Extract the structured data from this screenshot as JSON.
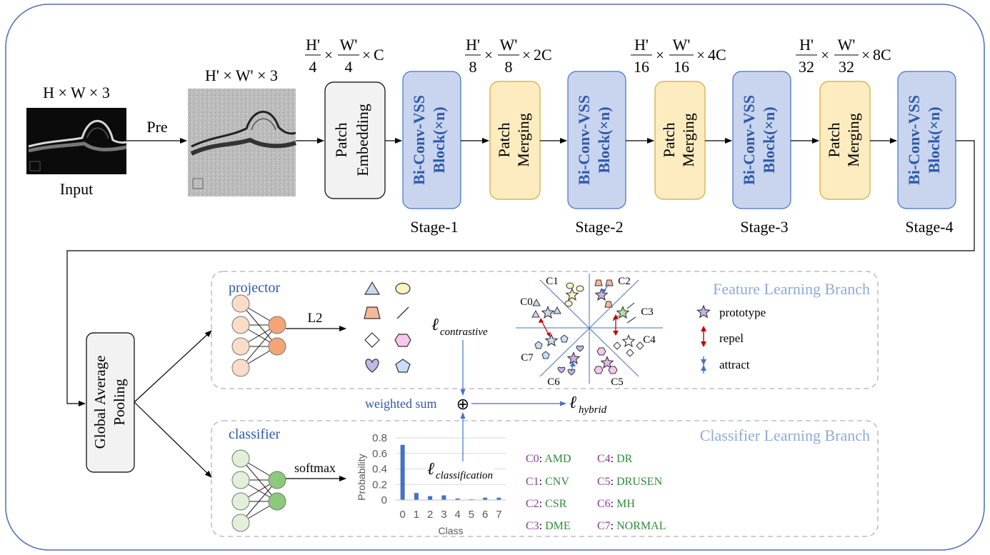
{
  "top": {
    "input_dims": "H × W × 3",
    "input_label": "Input",
    "pre_label": "Pre",
    "pre_dims": "H' × W' × 3",
    "patch_embedding": [
      "Patch",
      "Embedding"
    ],
    "patch_merging": [
      "Patch",
      "Merging"
    ],
    "block": [
      "Bi-Conv-VSS",
      "Block(×n)"
    ],
    "stages": [
      "Stage-1",
      "Stage-2",
      "Stage-3",
      "Stage-4"
    ],
    "dims": [
      {
        "h_num": "H'",
        "h_den": "4",
        "w_num": "W'",
        "w_den": "4",
        "c": "C"
      },
      {
        "h_num": "H'",
        "h_den": "8",
        "w_num": "W'",
        "w_den": "8",
        "c": "2C"
      },
      {
        "h_num": "H'",
        "h_den": "16",
        "w_num": "W'",
        "w_den": "16",
        "c": "4C"
      },
      {
        "h_num": "H'",
        "h_den": "32",
        "w_num": "W'",
        "w_den": "32",
        "c": "8C"
      }
    ],
    "times": "×"
  },
  "bottom": {
    "gap_label": [
      "Global Average",
      "Pooling"
    ],
    "projector_label": "projector",
    "l2_label": "L2",
    "contrastive_loss": {
      "symbol": "ℓ",
      "sub": "contrastive"
    },
    "feature_branch_title": "Feature Learning Branch",
    "class_labels": [
      "C0",
      "C1",
      "C2",
      "C3",
      "C4",
      "C5",
      "C6",
      "C7"
    ],
    "legend": {
      "prototype": "prototype",
      "repel": "repel",
      "attract": "attract"
    },
    "weighted_sum_label": "weighted sum",
    "plus_symbol": "⊕",
    "hybrid_loss": {
      "symbol": "ℓ",
      "sub": "hybrid"
    },
    "classifier_label": "classifier",
    "softmax_label": "softmax",
    "classification_loss": {
      "symbol": "ℓ",
      "sub": "classification"
    },
    "classifier_branch_title": "Classifier Learning Branch",
    "class_names": [
      {
        "code": "C0",
        "name": "AMD"
      },
      {
        "code": "C1",
        "name": "CNV"
      },
      {
        "code": "C2",
        "name": "CSR"
      },
      {
        "code": "C3",
        "name": "DME"
      },
      {
        "code": "C4",
        "name": "DR"
      },
      {
        "code": "C5",
        "name": "DRUSEN"
      },
      {
        "code": "C6",
        "name": "MH"
      },
      {
        "code": "C7",
        "name": "NORMAL"
      }
    ]
  },
  "colors": {
    "block_fill": "#c9d5ee",
    "block_stroke": "#4472c4",
    "block_text": "#2f58a8",
    "merge_fill": "#fdecc0",
    "merge_stroke": "#d6a83a",
    "branch_title": "#8eaad8",
    "projector_node": "#fadcc8",
    "projector_out": "#f4a578",
    "classifier_node": "#e2f0d9",
    "classifier_out": "#8dc97a",
    "bar": "#4472c4",
    "class_code": "#8e3a9a",
    "class_name": "#2e8b3a"
  },
  "chart_data": {
    "type": "bar",
    "categories": [
      "0",
      "1",
      "2",
      "3",
      "4",
      "5",
      "6",
      "7"
    ],
    "values": [
      0.71,
      0.09,
      0.05,
      0.06,
      0.02,
      0.01,
      0.03,
      0.03
    ],
    "title": "",
    "xlabel": "Class",
    "ylabel": "Probability",
    "ylim": [
      0,
      0.8
    ],
    "yticks": [
      "0",
      "0.2",
      "0.4",
      "0.6",
      "0.8"
    ],
    "grid": true
  }
}
